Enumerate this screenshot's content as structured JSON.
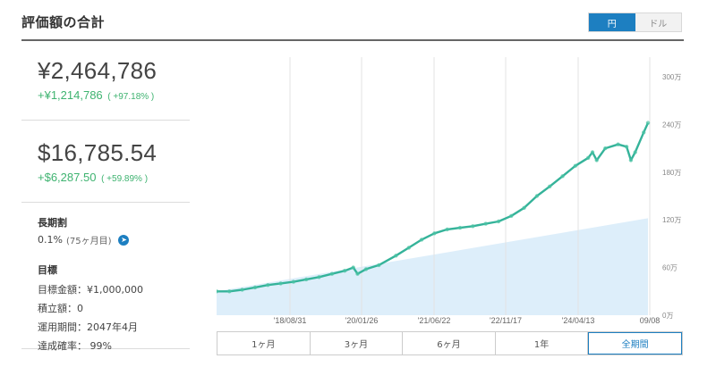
{
  "header": {
    "title": "評価額の合計",
    "currency": {
      "options": [
        "円",
        "ドル"
      ],
      "selected": "円"
    }
  },
  "summary": {
    "yen": {
      "value": "¥2,464,786",
      "gain": "+¥1,214,786",
      "gain_pct": "( +97.18% )"
    },
    "usd": {
      "value": "$16,785.54",
      "gain": "+$6,287.50",
      "gain_pct": "( +59.89% )"
    }
  },
  "long_term_discount": {
    "title": "長期割",
    "value": "0.1%",
    "sub": "(75ヶ月目)"
  },
  "goal": {
    "title": "目標",
    "items": [
      "目標金額：¥1,000,000",
      "積立額：0",
      "運用期間：2047年4月",
      "達成確率： 99%"
    ]
  },
  "periods": {
    "options": [
      "1ヶ月",
      "3ヶ月",
      "6ヶ月",
      "1年",
      "全期間"
    ],
    "selected": "全期間"
  },
  "colors": {
    "accent": "#1d7fc1",
    "gain": "#3eb370",
    "series": "#35b39a",
    "area": "#ddeefa"
  },
  "chart_data": {
    "type": "area",
    "x_ticks": [
      "'18/08/31",
      "'20/01/26",
      "'21/06/22",
      "'22/11/17",
      "'24/04/13",
      "09/08"
    ],
    "y_ticks": [
      "0万",
      "60万",
      "120万",
      "180万",
      "240万",
      "300万"
    ],
    "ylim": [
      0,
      300
    ],
    "y_unit": "万円",
    "series": [
      {
        "role": "valuation",
        "points": [
          [
            0,
            30
          ],
          [
            3,
            30
          ],
          [
            6,
            32
          ],
          [
            9,
            35
          ],
          [
            12,
            38
          ],
          [
            15,
            40
          ],
          [
            18,
            42
          ],
          [
            21,
            45
          ],
          [
            24,
            48
          ],
          [
            27,
            52
          ],
          [
            30,
            56
          ],
          [
            32,
            60
          ],
          [
            33,
            52
          ],
          [
            35,
            58
          ],
          [
            38,
            63
          ],
          [
            42,
            75
          ],
          [
            45,
            85
          ],
          [
            48,
            95
          ],
          [
            51,
            103
          ],
          [
            54,
            108
          ],
          [
            57,
            110
          ],
          [
            60,
            112
          ],
          [
            63,
            115
          ],
          [
            66,
            118
          ],
          [
            69,
            125
          ],
          [
            72,
            135
          ],
          [
            75,
            150
          ],
          [
            78,
            162
          ],
          [
            81,
            175
          ],
          [
            84,
            188
          ],
          [
            87,
            198
          ],
          [
            88,
            205
          ],
          [
            89,
            195
          ],
          [
            91,
            210
          ],
          [
            94,
            215
          ],
          [
            96,
            212
          ],
          [
            97,
            195
          ],
          [
            98,
            205
          ],
          [
            100,
            230
          ],
          [
            101,
            242
          ]
        ]
      },
      {
        "role": "invested",
        "points": [
          [
            0,
            30
          ],
          [
            101,
            122
          ]
        ]
      }
    ]
  }
}
